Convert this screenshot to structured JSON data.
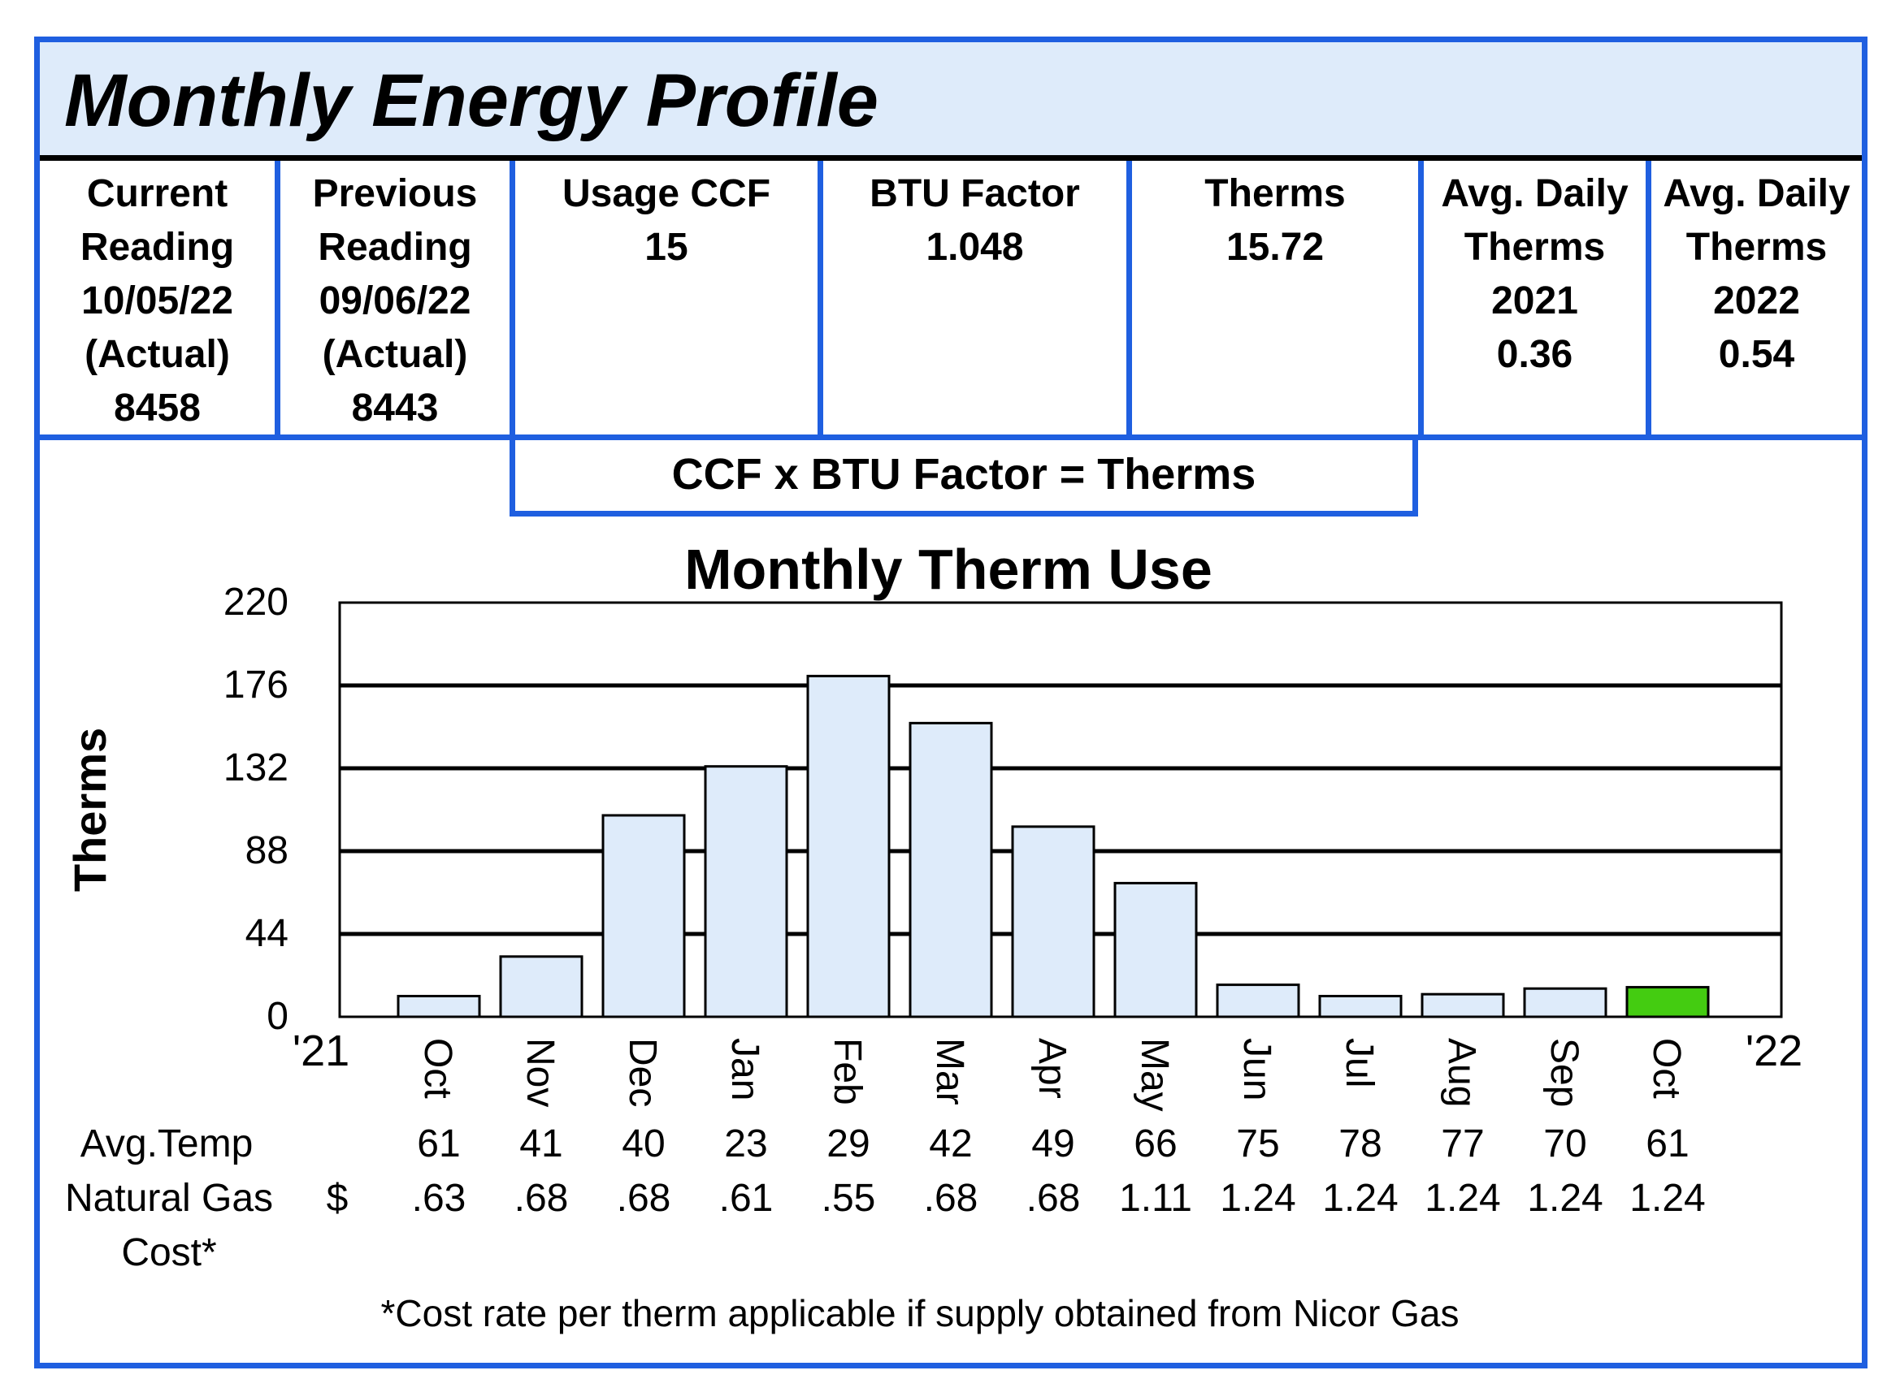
{
  "header": {
    "title": "Monthly Energy Profile"
  },
  "info": [
    {
      "lines": [
        "Current",
        "Reading",
        "10/05/22",
        "(Actual)",
        "8458"
      ]
    },
    {
      "lines": [
        "Previous",
        "Reading",
        "09/06/22",
        "(Actual)",
        "8443"
      ]
    },
    {
      "lines": [
        "Usage CCF",
        "15"
      ]
    },
    {
      "lines": [
        "BTU Factor",
        "1.048"
      ]
    },
    {
      "lines": [
        "Therms",
        "15.72"
      ]
    },
    {
      "lines": [
        "Avg. Daily",
        "Therms",
        "2021",
        "0.36"
      ]
    },
    {
      "lines": [
        "Avg. Daily",
        "Therms",
        "2022",
        "0.54"
      ]
    }
  ],
  "formula": "CCF x BTU Factor = Therms",
  "chart_data": {
    "type": "bar",
    "title": "Monthly Therm Use",
    "ylabel": "Therms",
    "xlabel": "",
    "ylim": [
      0,
      220
    ],
    "yticks": [
      "0",
      "44",
      "88",
      "132",
      "176",
      "220"
    ],
    "gridlines": [
      44,
      88,
      132,
      176
    ],
    "start_label": "'21",
    "end_label": "'22",
    "categories": [
      "Oct",
      "Nov",
      "Dec",
      "Jan",
      "Feb",
      "Mar",
      "Apr",
      "May",
      "Jun",
      "Jul",
      "Aug",
      "Sep",
      "Oct"
    ],
    "values": [
      11,
      32,
      107,
      133,
      181,
      156,
      101,
      71,
      17,
      11,
      12,
      15,
      15.72
    ],
    "bar_color": "#deebfa",
    "highlight_color": "#44cc11",
    "highlight_index": 12
  },
  "table": {
    "avg_temp_label": "Avg.Temp",
    "avg_temp": [
      "61",
      "41",
      "40",
      "23",
      "29",
      "42",
      "49",
      "66",
      "75",
      "78",
      "77",
      "70",
      "61"
    ],
    "gas_cost_label_1": "Natural Gas",
    "gas_cost_label_2": "Cost*",
    "currency": "$",
    "gas_cost": [
      ".63",
      ".68",
      ".68",
      ".61",
      ".55",
      ".68",
      ".68",
      "1.11",
      "1.24",
      "1.24",
      "1.24",
      "1.24",
      "1.24"
    ]
  },
  "footnote": "*Cost rate per therm applicable if supply obtained from Nicor Gas"
}
